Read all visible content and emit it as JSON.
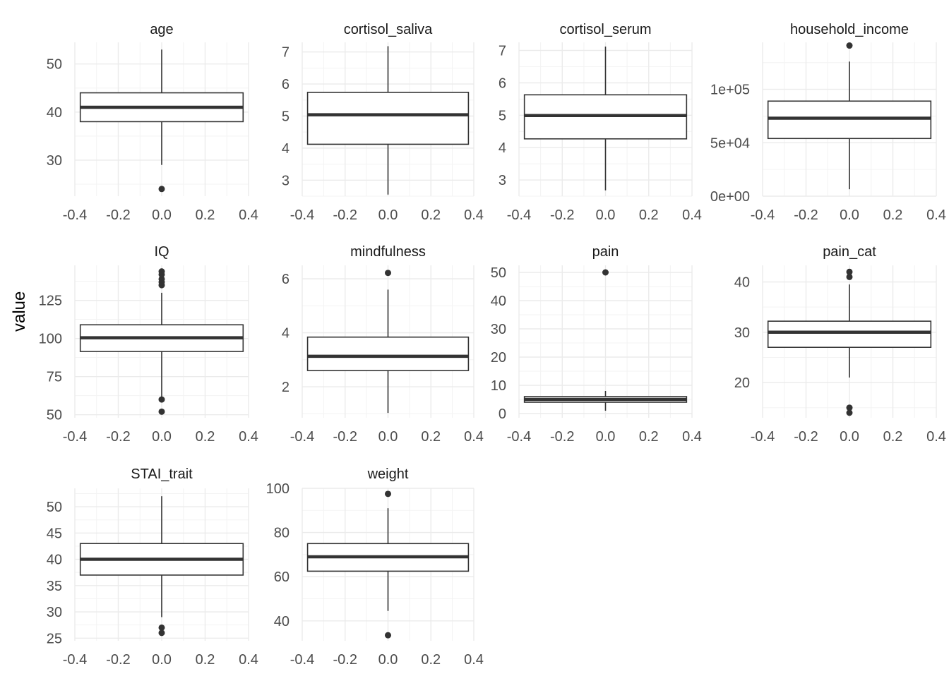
{
  "chart_data": {
    "type": "boxplot",
    "ylabel": "value",
    "x_ticks": [
      "-0.4",
      "-0.2",
      "0.0",
      "0.2",
      "0.4"
    ],
    "x_range": [
      -0.4,
      0.4
    ],
    "box_half_width": 0.375,
    "grid": "on",
    "colors": {
      "box_fill": "#ffffff",
      "box_line": "#333333",
      "median": "#333333",
      "grid": "#ebebeb",
      "text": "#4d4d4d"
    },
    "facets": [
      {
        "title": "age",
        "ylim": [
          22.5,
          54.5
        ],
        "yticks": [
          {
            "v": 30,
            "label": "30"
          },
          {
            "v": 40,
            "label": "40"
          },
          {
            "v": 50,
            "label": "50"
          }
        ],
        "q1": 38,
        "median": 41,
        "q3": 44,
        "whisker_low": 29,
        "whisker_high": 53,
        "outliers": [
          24
        ]
      },
      {
        "title": "cortisol_saliva",
        "ylim": [
          2.5,
          7.3
        ],
        "yticks": [
          {
            "v": 3,
            "label": "3"
          },
          {
            "v": 4,
            "label": "4"
          },
          {
            "v": 5,
            "label": "5"
          },
          {
            "v": 6,
            "label": "6"
          },
          {
            "v": 7,
            "label": "7"
          }
        ],
        "q1": 4.12,
        "median": 5.04,
        "q3": 5.74,
        "whisker_low": 2.55,
        "whisker_high": 7.18,
        "outliers": []
      },
      {
        "title": "cortisol_serum",
        "ylim": [
          2.5,
          7.25
        ],
        "yticks": [
          {
            "v": 3,
            "label": "3"
          },
          {
            "v": 4,
            "label": "4"
          },
          {
            "v": 5,
            "label": "5"
          },
          {
            "v": 6,
            "label": "6"
          },
          {
            "v": 7,
            "label": "7"
          }
        ],
        "q1": 4.27,
        "median": 4.99,
        "q3": 5.63,
        "whisker_low": 2.68,
        "whisker_high": 7.12,
        "outliers": []
      },
      {
        "title": "household_income",
        "ylim": [
          0,
          144000
        ],
        "yticks": [
          {
            "v": 0,
            "label": "0e+00"
          },
          {
            "v": 50000,
            "label": "5e+04"
          },
          {
            "v": 100000,
            "label": "1e+05"
          }
        ],
        "q1": 54000,
        "median": 73000,
        "q3": 89000,
        "whisker_low": 6500,
        "whisker_high": 126000,
        "outliers": [
          141000
        ]
      },
      {
        "title": "IQ",
        "ylim": [
          48,
          148
        ],
        "yticks": [
          {
            "v": 50,
            "label": "50"
          },
          {
            "v": 75,
            "label": "75"
          },
          {
            "v": 100,
            "label": "100"
          },
          {
            "v": 125,
            "label": "125"
          }
        ],
        "q1": 91.5,
        "median": 100.5,
        "q3": 109,
        "whisker_low": 61.5,
        "whisker_high": 130,
        "outliers": [
          52,
          60,
          135,
          137,
          139,
          142,
          144
        ]
      },
      {
        "title": "mindfulness",
        "ylim": [
          0.85,
          6.5
        ],
        "yticks": [
          {
            "v": 2,
            "label": "2"
          },
          {
            "v": 4,
            "label": "4"
          },
          {
            "v": 6,
            "label": "6"
          }
        ],
        "q1": 2.6,
        "median": 3.13,
        "q3": 3.84,
        "whisker_low": 1.03,
        "whisker_high": 5.6,
        "outliers": [
          6.22
        ]
      },
      {
        "title": "pain",
        "ylim": [
          -1.5,
          52.5
        ],
        "yticks": [
          {
            "v": 0,
            "label": "0"
          },
          {
            "v": 10,
            "label": "10"
          },
          {
            "v": 20,
            "label": "20"
          },
          {
            "v": 30,
            "label": "30"
          },
          {
            "v": 40,
            "label": "40"
          },
          {
            "v": 50,
            "label": "50"
          }
        ],
        "q1": 4,
        "median": 5,
        "q3": 6,
        "whisker_low": 1,
        "whisker_high": 8,
        "outliers": [
          50
        ]
      },
      {
        "title": "pain_cat",
        "ylim": [
          13,
          43.3
        ],
        "yticks": [
          {
            "v": 20,
            "label": "20"
          },
          {
            "v": 30,
            "label": "30"
          },
          {
            "v": 40,
            "label": "40"
          }
        ],
        "q1": 27,
        "median": 30,
        "q3": 32.2,
        "whisker_low": 21,
        "whisker_high": 39.5,
        "outliers": [
          14,
          15,
          41,
          42
        ]
      },
      {
        "title": "STAI_trait",
        "ylim": [
          24.5,
          53.5
        ],
        "yticks": [
          {
            "v": 25,
            "label": "25"
          },
          {
            "v": 30,
            "label": "30"
          },
          {
            "v": 35,
            "label": "35"
          },
          {
            "v": 40,
            "label": "40"
          },
          {
            "v": 45,
            "label": "45"
          },
          {
            "v": 50,
            "label": "50"
          }
        ],
        "q1": 37,
        "median": 40,
        "q3": 43,
        "whisker_low": 29,
        "whisker_high": 52,
        "outliers": [
          26,
          27
        ]
      },
      {
        "title": "weight",
        "ylim": [
          31,
          100
        ],
        "yticks": [
          {
            "v": 40,
            "label": "40"
          },
          {
            "v": 60,
            "label": "60"
          },
          {
            "v": 80,
            "label": "80"
          },
          {
            "v": 100,
            "label": "100"
          }
        ],
        "q1": 62.5,
        "median": 69,
        "q3": 75,
        "whisker_low": 44.5,
        "whisker_high": 91,
        "outliers": [
          33.5,
          97.5
        ]
      }
    ]
  }
}
